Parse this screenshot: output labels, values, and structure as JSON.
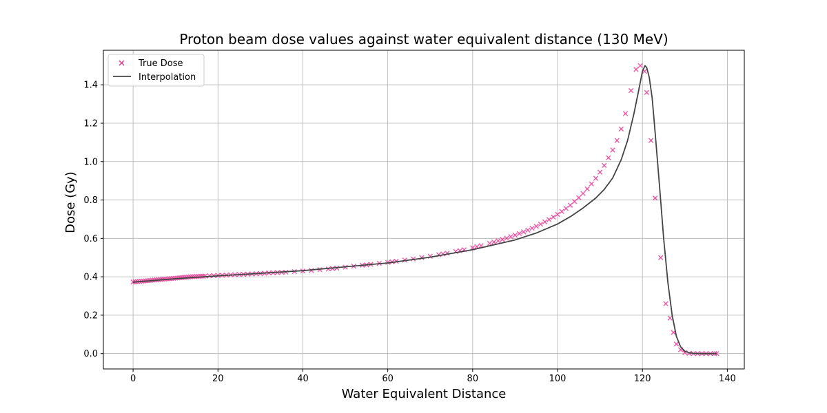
{
  "chart_data": {
    "type": "scatter",
    "title": "Proton beam dose values against water equivalent distance (130 MeV)",
    "xlabel": "Water Equivalent Distance",
    "ylabel": "Dose (Gy)",
    "xlim": [
      -7,
      144
    ],
    "ylim": [
      -0.08,
      1.58
    ],
    "x_ticks": [
      0,
      20,
      40,
      60,
      80,
      100,
      120,
      140
    ],
    "y_ticks": [
      0.0,
      0.2,
      0.4,
      0.6,
      0.8,
      1.0,
      1.2,
      1.4
    ],
    "x_tick_labels": [
      "0",
      "20",
      "40",
      "60",
      "80",
      "100",
      "120",
      "140"
    ],
    "y_tick_labels": [
      "0.0",
      "0.2",
      "0.4",
      "0.6",
      "0.8",
      "1.0",
      "1.2",
      "1.4"
    ],
    "grid": true,
    "legend_position": "top-left",
    "series": [
      {
        "name": "True Dose",
        "kind": "scatter",
        "marker": "x",
        "color": "#e8489b",
        "x": [
          0,
          0.5,
          1,
          1.5,
          2,
          2.5,
          3,
          3.5,
          4,
          4.5,
          5,
          5.5,
          6,
          6.5,
          7,
          7.5,
          8,
          8.5,
          9,
          9.5,
          10,
          10.5,
          11,
          11.5,
          12,
          12.5,
          13,
          13.5,
          14,
          14.5,
          15,
          15.5,
          16,
          16.5,
          17,
          18,
          19,
          20,
          21,
          22,
          23,
          24,
          25,
          26,
          27,
          28,
          29,
          30,
          31,
          32,
          33,
          34,
          35,
          36,
          38,
          40,
          42,
          44,
          46,
          47,
          48,
          50,
          52,
          54,
          55,
          56,
          58,
          60,
          61,
          62,
          64,
          66,
          68,
          70,
          72,
          73,
          74,
          76,
          77,
          78,
          80,
          81,
          82,
          84,
          85,
          86,
          87,
          88,
          89,
          90,
          91,
          92,
          93,
          94,
          95,
          96,
          97,
          98,
          99,
          100,
          101,
          102,
          103,
          104,
          105,
          106,
          107,
          108,
          109,
          110,
          111,
          112,
          113,
          114,
          115,
          116,
          117.3,
          118.5,
          119.5,
          120.5,
          121,
          122,
          123,
          124.3,
          125.5,
          126.5,
          127.3,
          128,
          129,
          130,
          131,
          132,
          133,
          134,
          135,
          136,
          137,
          137.5
        ],
        "y": [
          0.373,
          0.374,
          0.375,
          0.376,
          0.377,
          0.378,
          0.379,
          0.38,
          0.381,
          0.382,
          0.383,
          0.384,
          0.385,
          0.386,
          0.387,
          0.388,
          0.389,
          0.39,
          0.391,
          0.392,
          0.393,
          0.394,
          0.395,
          0.396,
          0.397,
          0.398,
          0.399,
          0.4,
          0.401,
          0.401,
          0.402,
          0.402,
          0.403,
          0.403,
          0.404,
          0.405,
          0.406,
          0.407,
          0.408,
          0.409,
          0.41,
          0.411,
          0.412,
          0.413,
          0.414,
          0.415,
          0.416,
          0.417,
          0.418,
          0.42,
          0.421,
          0.422,
          0.423,
          0.424,
          0.427,
          0.43,
          0.433,
          0.437,
          0.441,
          0.443,
          0.445,
          0.45,
          0.455,
          0.46,
          0.462,
          0.465,
          0.47,
          0.475,
          0.478,
          0.481,
          0.487,
          0.493,
          0.5,
          0.507,
          0.515,
          0.519,
          0.523,
          0.532,
          0.536,
          0.541,
          0.551,
          0.557,
          0.562,
          0.574,
          0.581,
          0.587,
          0.594,
          0.601,
          0.609,
          0.617,
          0.625,
          0.634,
          0.643,
          0.653,
          0.663,
          0.674,
          0.686,
          0.698,
          0.711,
          0.725,
          0.74,
          0.756,
          0.773,
          0.792,
          0.812,
          0.834,
          0.858,
          0.884,
          0.913,
          0.945,
          0.98,
          1.02,
          1.06,
          1.11,
          1.17,
          1.25,
          1.37,
          1.48,
          1.5,
          1.47,
          1.36,
          1.11,
          0.81,
          0.5,
          0.26,
          0.185,
          0.11,
          0.05,
          0.02,
          0.005,
          0.001,
          0.0,
          0.0,
          0.0,
          0.0,
          0.0,
          0.0,
          0.0
        ]
      },
      {
        "name": "Interpolation",
        "kind": "line",
        "color": "#444444",
        "x": [
          0,
          10,
          20,
          30,
          40,
          50,
          60,
          70,
          80,
          90,
          95,
          100,
          103,
          106,
          109,
          111,
          113,
          115,
          116.5,
          118,
          119.2,
          120,
          120.6,
          121,
          121.6,
          122.3,
          123,
          124,
          125,
          126,
          127,
          128,
          129,
          130,
          131,
          132,
          134,
          137.5
        ],
        "y": [
          0.372,
          0.39,
          0.405,
          0.418,
          0.432,
          0.452,
          0.472,
          0.502,
          0.541,
          0.592,
          0.628,
          0.675,
          0.713,
          0.758,
          0.81,
          0.855,
          0.915,
          1.01,
          1.11,
          1.25,
          1.38,
          1.47,
          1.5,
          1.49,
          1.44,
          1.33,
          1.15,
          0.88,
          0.6,
          0.37,
          0.2,
          0.09,
          0.035,
          0.012,
          0.004,
          0.001,
          0.0,
          0.0
        ]
      }
    ]
  }
}
